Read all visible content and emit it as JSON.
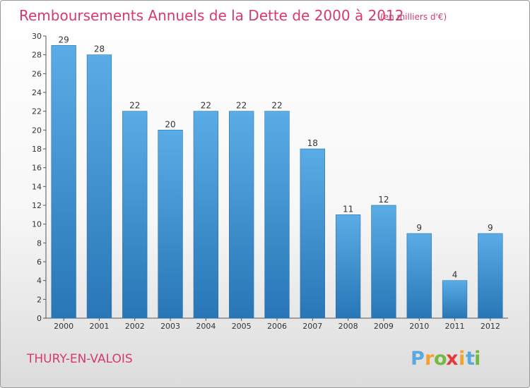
{
  "header": {
    "title": "Remboursements Annuels de la Dette de 2000 à 2012",
    "unit": "(en milliers d'€)"
  },
  "footer": {
    "town": "THURY-EN-VALOIS",
    "logo_letters": [
      "P",
      "r",
      "o",
      "x",
      "i",
      "t",
      "i"
    ],
    "logo_colors": [
      "#5aa9dd",
      "#f2a22e",
      "#75b943",
      "#e23b3b",
      "#f2a22e",
      "#5aa9dd",
      "#75b943"
    ]
  },
  "chart_data": {
    "type": "bar",
    "title": "Remboursements Annuels de la Dette de 2000 à 2012",
    "unit": "(en milliers d'€)",
    "categories": [
      "2000",
      "2001",
      "2002",
      "2003",
      "2004",
      "2005",
      "2006",
      "2007",
      "2008",
      "2009",
      "2010",
      "2011",
      "2012"
    ],
    "values": [
      29,
      28,
      22,
      20,
      22,
      22,
      22,
      18,
      11,
      12,
      9,
      4,
      9
    ],
    "ylim": [
      0,
      30
    ],
    "yticks": [
      0,
      2,
      4,
      6,
      8,
      10,
      12,
      14,
      16,
      18,
      20,
      22,
      24,
      26,
      28,
      30
    ],
    "grid": false,
    "bar_color_light": "#5aace6",
    "bar_color_dark": "#2876b6"
  }
}
